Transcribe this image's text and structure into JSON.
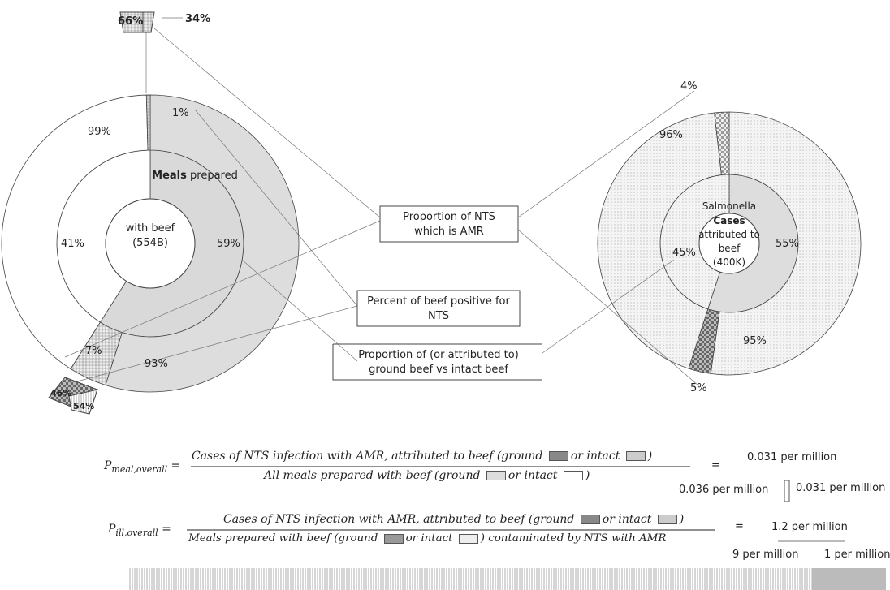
{
  "left_donut": {
    "center_bold": "Meals",
    "center_lines": [
      " prepared",
      "with beef",
      "(554B)"
    ],
    "inner": [
      {
        "value": 59,
        "label": "59%"
      },
      {
        "value": 41,
        "label": "41%"
      }
    ],
    "outer_ground": [
      {
        "value": 93,
        "label": "93%"
      },
      {
        "value": 7,
        "label": "7%"
      }
    ],
    "outer_intact": [
      {
        "value": 99,
        "label": "99%"
      },
      {
        "value": 1,
        "label": "1%"
      }
    ],
    "top_inset": [
      "66%",
      "34%"
    ],
    "bottom_inset": [
      "46%",
      "54%"
    ]
  },
  "right_donut": {
    "center_lines": [
      "Salmonella",
      "Cases",
      "attributed to",
      "beef",
      "(400K)"
    ],
    "inner": [
      {
        "value": 55,
        "label": "55%"
      },
      {
        "value": 45,
        "label": "45%"
      }
    ],
    "outer_ground": [
      {
        "value": 95,
        "label": "95%"
      },
      {
        "value": 5,
        "label": "5%"
      }
    ],
    "outer_intact": [
      {
        "value": 96,
        "label": "96%"
      },
      {
        "value": 4,
        "label": "4%"
      }
    ]
  },
  "callouts": [
    [
      "Proportion of NTS",
      "which is AMR"
    ],
    [
      "Percent of beef positive for",
      "NTS"
    ],
    [
      "Proportion of (or attributed to)",
      "ground beef vs intact beef"
    ]
  ],
  "formulas": [
    {
      "symbol": "P",
      "subscript": "meal,overall",
      "equals": "=",
      "numerator": [
        "Cases of NTS infection with AMR, attributed to beef (ground ",
        "or intact ",
        ")"
      ],
      "denominator": [
        "All meals prepared with beef (ground ",
        "or intact ",
        ")"
      ],
      "result": "0.031 per million",
      "result_left": "0.036 per million",
      "result_right": "0.031 per million"
    },
    {
      "symbol": "P",
      "subscript": "ill,overall",
      "equals": "=",
      "numerator": [
        "Cases of NTS infection with AMR, attributed to beef (ground ",
        "or intact ",
        ")"
      ],
      "denominator": [
        "Meals prepared with beef (ground ",
        "or intact ",
        ") contaminated by NTS with AMR"
      ],
      "result": "1.2 per million",
      "result_left": "9 per million",
      "result_right": "1 per million"
    }
  ]
}
